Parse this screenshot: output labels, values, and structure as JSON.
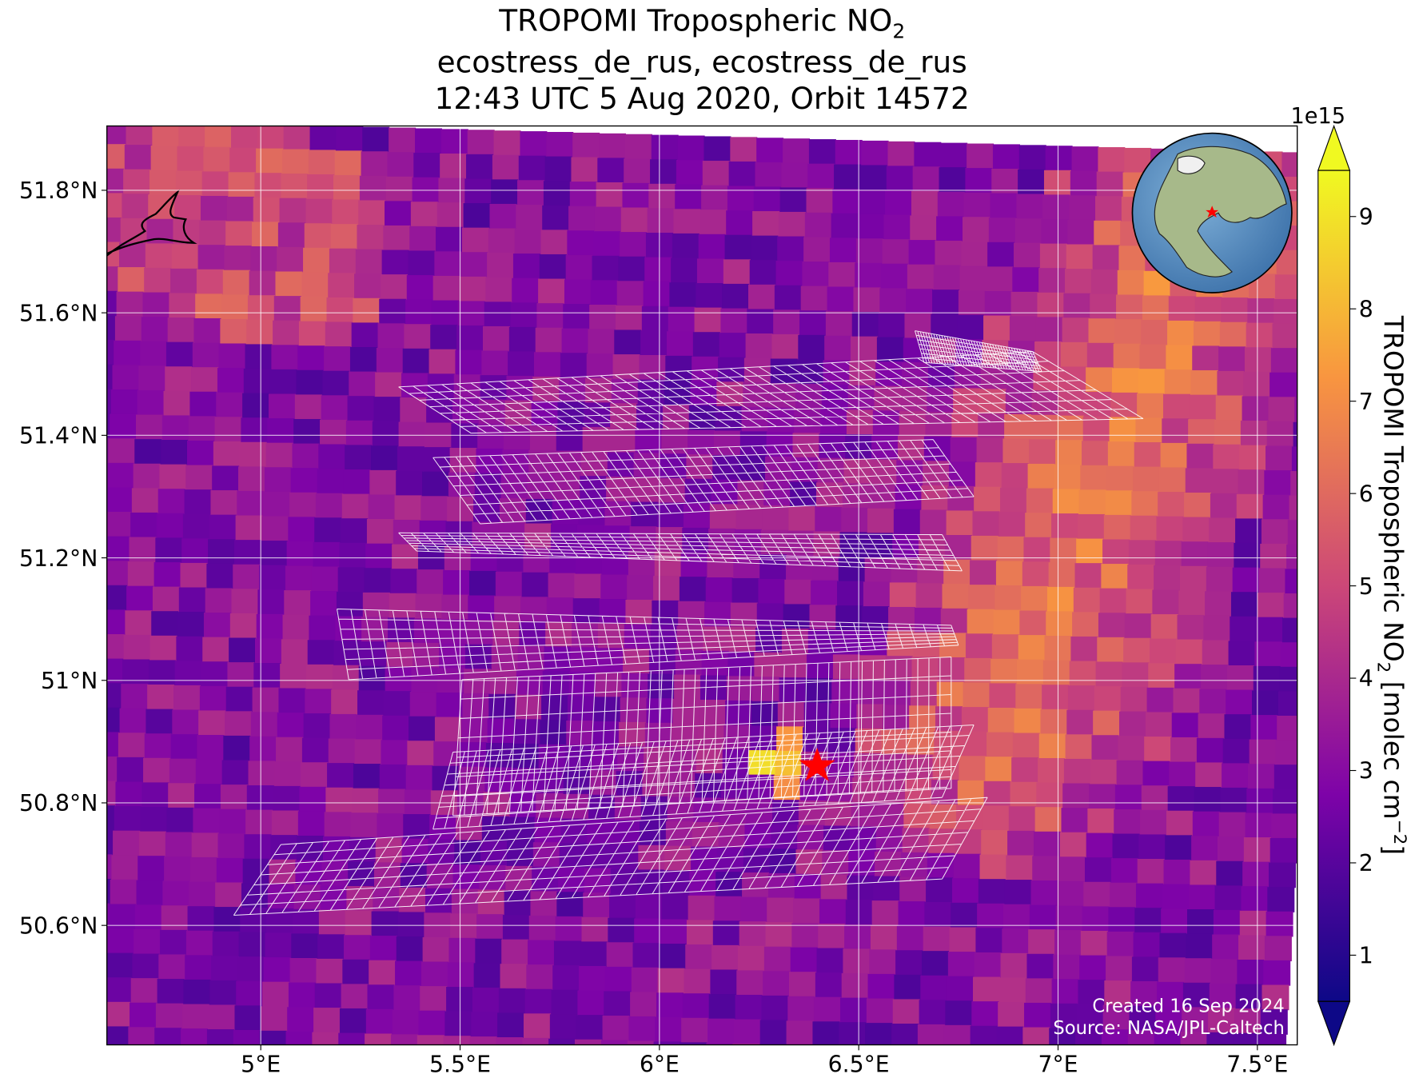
{
  "title": {
    "line1": "TROPOMI Tropospheric NO",
    "line1_sub": "2",
    "line2": "ecostress_de_rus, ecostress_de_rus",
    "line3": "12:43 UTC 5 Aug 2020, Orbit 14572"
  },
  "map": {
    "xlim": [
      4.614,
      7.6
    ],
    "ylim": [
      50.405,
      51.905
    ],
    "xticks": [
      {
        "value": 5,
        "label": "5°E"
      },
      {
        "value": 5.5,
        "label": "5.5°E"
      },
      {
        "value": 6,
        "label": "6°E"
      },
      {
        "value": 6.5,
        "label": "6.5°E"
      },
      {
        "value": 7,
        "label": "7°E"
      },
      {
        "value": 7.5,
        "label": "7.5°E"
      }
    ],
    "yticks": [
      {
        "value": 50.6,
        "label": "50.6°N"
      },
      {
        "value": 50.8,
        "label": "50.8°N"
      },
      {
        "value": 51,
        "label": "51°N"
      },
      {
        "value": 51.2,
        "label": "51.2°N"
      },
      {
        "value": 51.4,
        "label": "51.4°N"
      },
      {
        "value": 51.6,
        "label": "51.6°N"
      },
      {
        "value": 51.8,
        "label": "51.8°N"
      }
    ]
  },
  "colorbar": {
    "label": "TROPOMI Tropospheric NO",
    "label_sub": "2",
    "label_unit": " [molec cm",
    "label_sup": "−2",
    "label_end": "]",
    "exponent": "1e15",
    "lim": [
      0.5,
      9.5
    ],
    "ticks": [
      1,
      2,
      3,
      4,
      5,
      6,
      7,
      8,
      9
    ]
  },
  "footer": {
    "created": "Created 16 Sep 2024",
    "source": "Source: NASA/JPL-Caltech"
  }
}
